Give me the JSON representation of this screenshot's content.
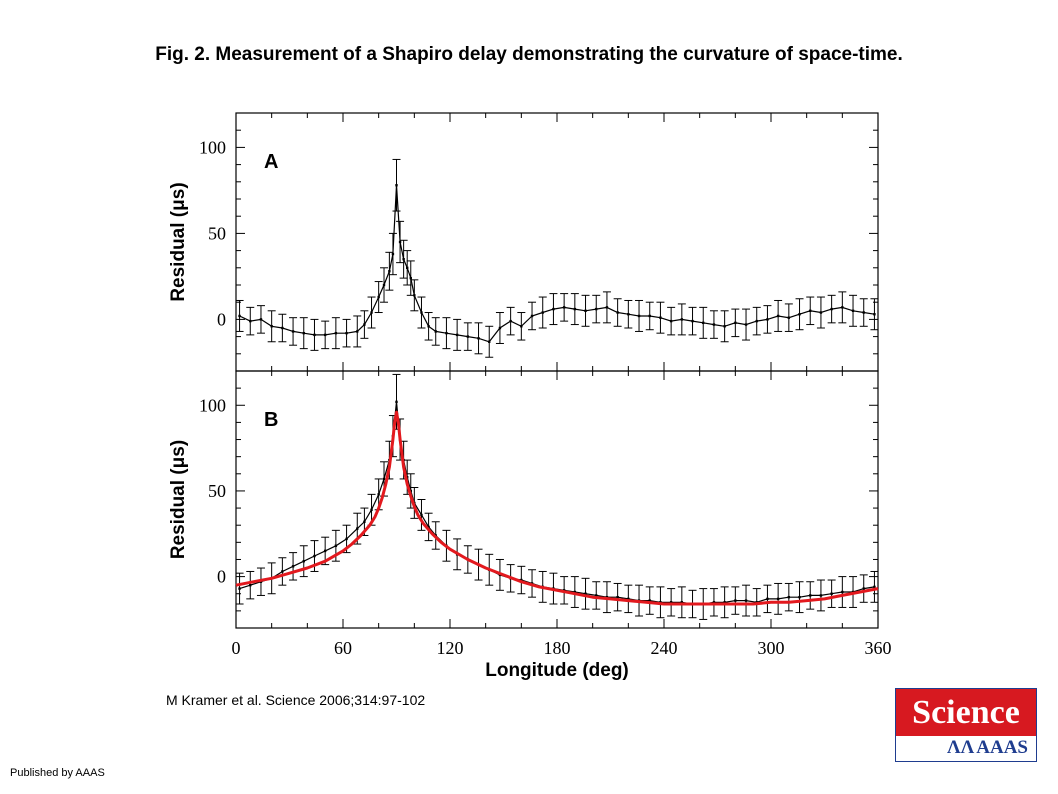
{
  "page": {
    "title": "Fig. 2. Measurement of a Shapiro delay demonstrating the curvature of space-time.",
    "citation": "M Kramer et al. Science 2006;314:97-102",
    "publisher": "Published by AAAS",
    "logo": {
      "name": "Science",
      "sub": "AAAS"
    }
  },
  "colors": {
    "data": "#000000",
    "fit": "#e3191e",
    "frame": "#000000"
  },
  "chart_data": [
    {
      "type": "scatter",
      "panel": "A",
      "xlabel": "",
      "ylabel": "Residual (μs)",
      "xlim": [
        0,
        360
      ],
      "ylim": [
        -30,
        120
      ],
      "yticks": [
        0,
        50,
        100
      ],
      "error_bars": true,
      "grid": false,
      "series": [
        {
          "x": [
            2,
            8,
            14,
            20,
            26,
            32,
            38,
            44,
            50,
            56,
            62,
            68,
            72,
            76,
            80,
            83,
            86,
            88,
            90,
            92,
            94,
            96,
            98,
            100,
            104,
            108,
            112,
            118,
            124,
            130,
            136,
            142,
            148,
            154,
            160,
            166,
            172,
            178,
            184,
            190,
            196,
            202,
            208,
            214,
            220,
            226,
            232,
            238,
            244,
            250,
            256,
            262,
            268,
            274,
            280,
            286,
            292,
            298,
            304,
            310,
            316,
            322,
            328,
            334,
            340,
            346,
            352,
            358
          ],
          "y": [
            2,
            -1,
            0,
            -4,
            -5,
            -7,
            -8,
            -9,
            -9,
            -8,
            -8,
            -7,
            -3,
            4,
            13,
            20,
            28,
            38,
            78,
            45,
            35,
            30,
            24,
            14,
            4,
            -4,
            -7,
            -8,
            -9,
            -10,
            -11,
            -13,
            -5,
            -1,
            -4,
            2,
            4,
            6,
            7,
            6,
            5,
            6,
            7,
            4,
            3,
            2,
            2,
            1,
            -1,
            0,
            -1,
            -2,
            -3,
            -4,
            -2,
            -3,
            -1,
            0,
            2,
            1,
            3,
            5,
            4,
            6,
            7,
            5,
            4,
            3
          ],
          "error": [
            9,
            8,
            8,
            9,
            8,
            8,
            9,
            9,
            8,
            9,
            8,
            9,
            8,
            9,
            9,
            10,
            11,
            12,
            15,
            12,
            11,
            10,
            10,
            9,
            9,
            8,
            8,
            9,
            9,
            8,
            9,
            9,
            9,
            8,
            8,
            8,
            9,
            9,
            8,
            9,
            9,
            8,
            9,
            8,
            8,
            9,
            8,
            9,
            8,
            9,
            8,
            9,
            8,
            9,
            8,
            9,
            8,
            8,
            9,
            8,
            9,
            8,
            9,
            8,
            9,
            9,
            8,
            9
          ]
        }
      ]
    },
    {
      "type": "scatter",
      "panel": "B",
      "xlabel": "Longitude (deg)",
      "ylabel": "Residual (μs)",
      "xlim": [
        0,
        360
      ],
      "ylim": [
        -30,
        120
      ],
      "yticks": [
        0,
        50,
        100
      ],
      "xticks": [
        0,
        60,
        120,
        180,
        240,
        300,
        360
      ],
      "error_bars": true,
      "grid": false,
      "series": [
        {
          "x": [
            2,
            8,
            14,
            20,
            26,
            32,
            38,
            44,
            50,
            56,
            62,
            68,
            72,
            76,
            80,
            83,
            86,
            88,
            90,
            92,
            94,
            96,
            98,
            100,
            104,
            108,
            112,
            118,
            124,
            130,
            136,
            142,
            148,
            154,
            160,
            166,
            172,
            178,
            184,
            190,
            196,
            202,
            208,
            214,
            220,
            226,
            232,
            238,
            244,
            250,
            256,
            262,
            268,
            274,
            280,
            286,
            292,
            298,
            304,
            310,
            316,
            322,
            328,
            334,
            340,
            346,
            352,
            358
          ],
          "y": [
            -7,
            -5,
            -3,
            -1,
            3,
            6,
            9,
            12,
            15,
            18,
            22,
            28,
            32,
            39,
            48,
            57,
            68,
            82,
            102,
            80,
            68,
            58,
            50,
            43,
            36,
            29,
            24,
            18,
            13,
            10,
            7,
            4,
            1,
            -1,
            -2,
            -4,
            -6,
            -7,
            -8,
            -9,
            -10,
            -11,
            -12,
            -12,
            -13,
            -14,
            -14,
            -15,
            -15,
            -15,
            -16,
            -16,
            -15,
            -15,
            -14,
            -14,
            -15,
            -13,
            -13,
            -12,
            -12,
            -11,
            -11,
            -10,
            -9,
            -9,
            -7,
            -6
          ],
          "error": [
            9,
            8,
            8,
            9,
            8,
            8,
            9,
            9,
            8,
            9,
            8,
            9,
            8,
            9,
            9,
            10,
            11,
            12,
            16,
            12,
            11,
            10,
            10,
            9,
            9,
            8,
            8,
            9,
            9,
            8,
            9,
            9,
            9,
            8,
            8,
            8,
            9,
            9,
            8,
            9,
            9,
            8,
            9,
            8,
            8,
            9,
            8,
            9,
            8,
            9,
            8,
            9,
            8,
            9,
            8,
            9,
            8,
            8,
            9,
            8,
            9,
            8,
            9,
            8,
            9,
            9,
            8,
            9
          ]
        },
        {
          "name": "",
          "style": "line",
          "color": "#e3191e",
          "x": [
            0,
            10,
            20,
            30,
            40,
            50,
            60,
            65,
            70,
            75,
            78,
            80,
            82,
            84,
            86,
            88,
            89,
            90,
            91,
            92,
            94,
            96,
            98,
            100,
            102,
            105,
            110,
            115,
            120,
            130,
            140,
            150,
            160,
            170,
            180,
            190,
            200,
            210,
            220,
            230,
            240,
            250,
            260,
            270,
            280,
            290,
            300,
            310,
            320,
            330,
            340,
            350,
            360
          ],
          "y": [
            -5,
            -3,
            -1,
            2,
            5,
            9,
            15,
            19,
            24,
            30,
            35,
            40,
            46,
            54,
            64,
            80,
            90,
            96,
            90,
            80,
            64,
            54,
            47,
            41,
            36,
            31,
            25,
            20,
            16,
            10,
            5,
            1,
            -3,
            -6,
            -8,
            -10,
            -12,
            -13,
            -14,
            -15,
            -16,
            -16,
            -16,
            -16,
            -16,
            -16,
            -15,
            -15,
            -14,
            -13,
            -11,
            -9,
            -7
          ]
        }
      ]
    }
  ]
}
